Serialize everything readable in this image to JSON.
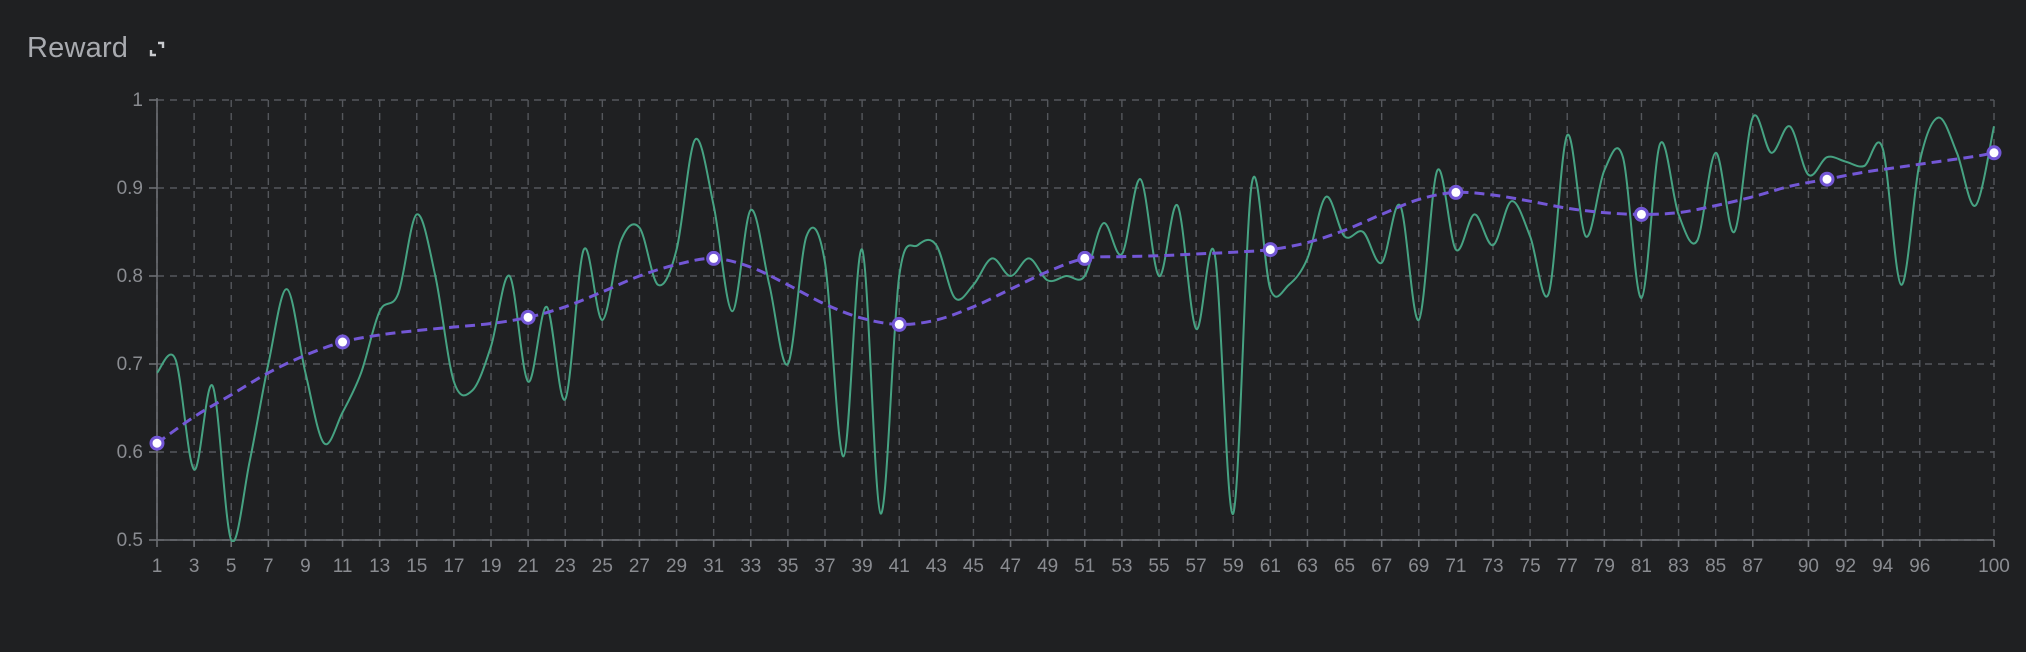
{
  "panel": {
    "title": "Reward",
    "expand_icon": "expand-icon"
  },
  "colors": {
    "background": "#1f2022",
    "grid": "#55575c",
    "axis": "#6c6e73",
    "tick_text": "#8a8c91",
    "raw_series": "#46a282",
    "smoothed_series": "#7357d6",
    "marker_fill": "#ffffff"
  },
  "chart_data": {
    "type": "line",
    "title": "Reward",
    "xlabel": "",
    "ylabel": "",
    "xlim": [
      1,
      100
    ],
    "ylim": [
      0.5,
      1
    ],
    "grid": true,
    "y_ticks": [
      0.5,
      0.6,
      0.7,
      0.8,
      0.9,
      1
    ],
    "y_tick_labels": [
      "0.5",
      "0.6",
      "0.7",
      "0.8",
      "0.9",
      "1"
    ],
    "x_tick_labels": [
      "1",
      "3",
      "5",
      "7",
      "9",
      "11",
      "13",
      "15",
      "17",
      "19",
      "21",
      "23",
      "25",
      "27",
      "29",
      "31",
      "33",
      "35",
      "37",
      "39",
      "41",
      "43",
      "45",
      "47",
      "49",
      "51",
      "53",
      "55",
      "57",
      "59",
      "61",
      "63",
      "65",
      "67",
      "69",
      "71",
      "73",
      "75",
      "77",
      "79",
      "81",
      "83",
      "85",
      "87",
      "90",
      "92",
      "94",
      "96",
      "100"
    ],
    "x_ticks": [
      1,
      3,
      5,
      7,
      9,
      11,
      13,
      15,
      17,
      19,
      21,
      23,
      25,
      27,
      29,
      31,
      33,
      35,
      37,
      39,
      41,
      43,
      45,
      47,
      49,
      51,
      53,
      55,
      57,
      59,
      61,
      63,
      65,
      67,
      69,
      71,
      73,
      75,
      77,
      79,
      81,
      83,
      85,
      87,
      90,
      92,
      94,
      96,
      100
    ],
    "series": [
      {
        "style": "solid",
        "color": "#46a282",
        "x": [
          1,
          2,
          3,
          4,
          5,
          6,
          7,
          8,
          9,
          10,
          11,
          12,
          13,
          14,
          15,
          16,
          17,
          18,
          19,
          20,
          21,
          22,
          23,
          24,
          25,
          26,
          27,
          28,
          29,
          30,
          31,
          32,
          33,
          34,
          35,
          36,
          37,
          38,
          39,
          40,
          41,
          42,
          43,
          44,
          45,
          46,
          47,
          48,
          49,
          50,
          51,
          52,
          53,
          54,
          55,
          56,
          57,
          58,
          59,
          60,
          61,
          62,
          63,
          64,
          65,
          66,
          67,
          68,
          69,
          70,
          71,
          72,
          73,
          74,
          75,
          76,
          77,
          78,
          79,
          80,
          81,
          82,
          83,
          84,
          85,
          86,
          87,
          88,
          89,
          90,
          91,
          92,
          93,
          94,
          95,
          96,
          97,
          98,
          99,
          100
        ],
        "values": [
          0.69,
          0.705,
          0.58,
          0.675,
          0.5,
          0.59,
          0.7,
          0.785,
          0.69,
          0.61,
          0.645,
          0.69,
          0.76,
          0.78,
          0.87,
          0.8,
          0.68,
          0.67,
          0.72,
          0.8,
          0.68,
          0.765,
          0.66,
          0.83,
          0.75,
          0.84,
          0.855,
          0.79,
          0.83,
          0.955,
          0.88,
          0.76,
          0.875,
          0.79,
          0.7,
          0.845,
          0.815,
          0.595,
          0.83,
          0.53,
          0.8,
          0.835,
          0.835,
          0.775,
          0.79,
          0.82,
          0.8,
          0.82,
          0.795,
          0.8,
          0.8,
          0.86,
          0.825,
          0.91,
          0.8,
          0.88,
          0.74,
          0.825,
          0.53,
          0.905,
          0.785,
          0.79,
          0.82,
          0.89,
          0.845,
          0.85,
          0.815,
          0.88,
          0.75,
          0.92,
          0.83,
          0.87,
          0.835,
          0.885,
          0.845,
          0.78,
          0.96,
          0.845,
          0.92,
          0.935,
          0.775,
          0.95,
          0.87,
          0.84,
          0.94,
          0.85,
          0.98,
          0.94,
          0.97,
          0.915,
          0.935,
          0.93,
          0.925,
          0.945,
          0.79,
          0.93,
          0.98,
          0.94,
          0.88,
          0.97
        ]
      },
      {
        "style": "dashed",
        "color": "#7357d6",
        "x": [
          1,
          3,
          5,
          7,
          9,
          11,
          13,
          15,
          17,
          19,
          21,
          23,
          25,
          27,
          29,
          31,
          33,
          35,
          37,
          39,
          41,
          43,
          45,
          47,
          49,
          51,
          53,
          55,
          57,
          59,
          61,
          63,
          65,
          67,
          69,
          71,
          73,
          75,
          77,
          79,
          81,
          83,
          85,
          87,
          89,
          91,
          93,
          95,
          97,
          99,
          100
        ],
        "values": [
          0.61,
          0.64,
          0.665,
          0.69,
          0.71,
          0.725,
          0.733,
          0.738,
          0.742,
          0.746,
          0.753,
          0.765,
          0.782,
          0.8,
          0.813,
          0.82,
          0.81,
          0.79,
          0.768,
          0.752,
          0.745,
          0.75,
          0.765,
          0.785,
          0.805,
          0.82,
          0.822,
          0.823,
          0.825,
          0.827,
          0.83,
          0.838,
          0.852,
          0.87,
          0.887,
          0.895,
          0.892,
          0.885,
          0.877,
          0.872,
          0.87,
          0.872,
          0.88,
          0.89,
          0.902,
          0.91,
          0.918,
          0.924,
          0.93,
          0.936,
          0.94
        ],
        "markers_x": [
          1,
          11,
          21,
          31,
          41,
          51,
          61,
          71,
          81,
          91,
          100
        ],
        "markers_y": [
          0.61,
          0.725,
          0.753,
          0.82,
          0.745,
          0.82,
          0.83,
          0.895,
          0.87,
          0.91,
          0.94
        ]
      }
    ]
  }
}
